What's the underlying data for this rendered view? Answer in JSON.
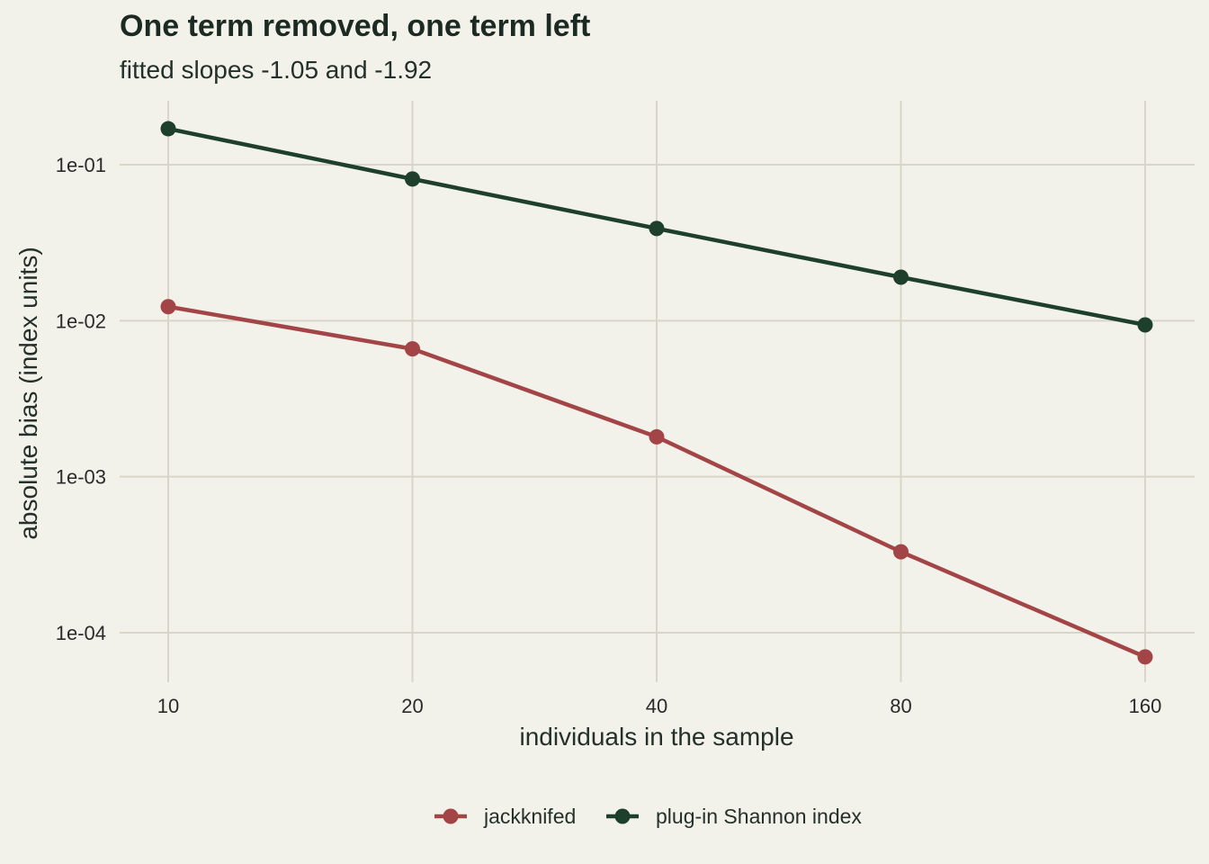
{
  "chart_data": {
    "type": "line",
    "title": "One term removed, one term left",
    "subtitle": "fitted slopes -1.05 and -1.92",
    "xlabel": "individuals in the sample",
    "ylabel": "absolute bias (index units)",
    "x_scale": "log2",
    "y_scale": "log10",
    "x": [
      10,
      20,
      40,
      80,
      160
    ],
    "x_tick_labels": [
      "10",
      "20",
      "40",
      "80",
      "160"
    ],
    "y_ticks": [
      0.0001,
      0.001,
      0.01,
      0.1
    ],
    "y_tick_labels": [
      "1e-04",
      "1e-03",
      "1e-02",
      "1e-01"
    ],
    "grid": true,
    "legend_position": "bottom",
    "series": [
      {
        "name": "jackknifed",
        "color": "#a34446",
        "values": [
          0.0123,
          0.0066,
          0.0018,
          0.00033,
          7e-05
        ]
      },
      {
        "name": "plug-in Shannon index",
        "color": "#1d3f2c",
        "values": [
          0.17,
          0.081,
          0.039,
          0.019,
          0.0094
        ]
      }
    ]
  }
}
